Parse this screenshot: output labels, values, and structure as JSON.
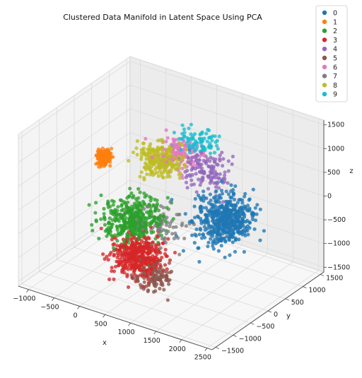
{
  "chart_data": {
    "type": "scatter",
    "title": "Clustered Data Manifold in Latent Space Using PCA",
    "xlabel": "x",
    "ylabel": "y",
    "zlabel": "z",
    "xlim": [
      -1200,
      2600
    ],
    "ylim": [
      -1600,
      1600
    ],
    "zlim": [
      -1600,
      1600
    ],
    "x_ticks": [
      "−1000",
      "−500",
      "0",
      "500",
      "1000",
      "1500",
      "2000",
      "2500"
    ],
    "y_ticks": [
      "−1500",
      "−1000",
      "−500",
      "0",
      "500",
      "1000",
      "1500"
    ],
    "z_ticks": [
      "−1500",
      "−1000",
      "−500",
      "0",
      "500",
      "1000",
      "1500"
    ],
    "grid": true,
    "legend_position": "top-right",
    "series": [
      {
        "name": "0",
        "color": "#1f77b4",
        "center": [
          1550,
          300,
          -200
        ],
        "spread": [
          420,
          450,
          420
        ],
        "count": 520
      },
      {
        "name": "1",
        "color": "#ff7f0e",
        "center": [
          -850,
          350,
          250
        ],
        "spread": [
          80,
          120,
          120
        ],
        "count": 220
      },
      {
        "name": "2",
        "color": "#2ca02c",
        "center": [
          250,
          -450,
          -300
        ],
        "spread": [
          420,
          450,
          350
        ],
        "count": 420
      },
      {
        "name": "3",
        "color": "#d62728",
        "center": [
          600,
          -800,
          -750
        ],
        "spread": [
          380,
          380,
          330
        ],
        "count": 420
      },
      {
        "name": "4",
        "color": "#9467bd",
        "center": [
          1000,
          600,
          500
        ],
        "spread": [
          350,
          350,
          300
        ],
        "count": 130
      },
      {
        "name": "5",
        "color": "#8c564b",
        "center": [
          1000,
          -900,
          -1000
        ],
        "spread": [
          300,
          250,
          220
        ],
        "count": 110
      },
      {
        "name": "6",
        "color": "#e377c2",
        "center": [
          300,
          800,
          500
        ],
        "spread": [
          350,
          300,
          250
        ],
        "count": 130
      },
      {
        "name": "7",
        "color": "#7f7f7f",
        "center": [
          700,
          -200,
          -400
        ],
        "spread": [
          400,
          400,
          350
        ],
        "count": 80
      },
      {
        "name": "8",
        "color": "#bcbd22",
        "center": [
          100,
          600,
          400
        ],
        "spread": [
          320,
          300,
          250
        ],
        "count": 260
      },
      {
        "name": "9",
        "color": "#17becf",
        "center": [
          600,
          900,
          800
        ],
        "spread": [
          300,
          250,
          200
        ],
        "count": 90
      }
    ]
  }
}
